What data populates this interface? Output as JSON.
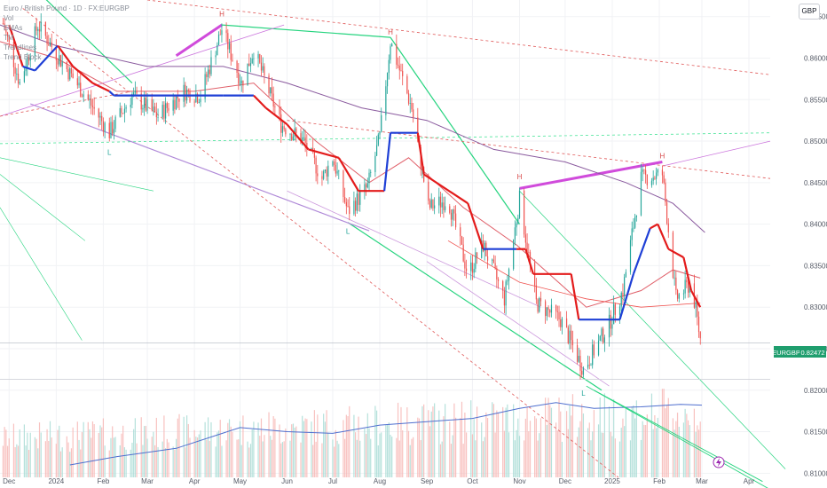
{
  "header": {
    "legend_lines": [
      "Euro / British Pound · 1D · FX:EURGBP",
      "Vol",
      "EMAs",
      "TM",
      "Trendlines",
      "Trend Block"
    ],
    "currency_button": "GBP"
  },
  "price_tag": {
    "symbol": "EURGBP",
    "value": "0.82472"
  },
  "pivot_labels": [
    {
      "text": "H",
      "date": "2024-04-19",
      "price": 0.8646
    },
    {
      "text": "H",
      "date": "2024-08-08",
      "price": 0.8624
    },
    {
      "text": "H",
      "date": "2024-11-01",
      "price": 0.845
    },
    {
      "text": "H",
      "date": "2025-02-03",
      "price": 0.8475
    },
    {
      "text": "L",
      "date": "2024-02-05",
      "price": 0.8495
    },
    {
      "text": "L",
      "date": "2024-07-11",
      "price": 0.84
    },
    {
      "text": "L",
      "date": "2024-12-13",
      "price": 0.8205
    }
  ],
  "chart_data": {
    "type": "candlestick",
    "title": "",
    "xlabel": "",
    "ylabel": "",
    "x_range": [
      "2023-11-25",
      "2025-04-15"
    ],
    "ylim": [
      0.8095,
      0.867
    ],
    "y_ticks": [
      "0.86500",
      "0.86000",
      "0.85500",
      "0.85000",
      "0.84500",
      "0.84000",
      "0.83500",
      "0.83000",
      "0.82500",
      "0.82000",
      "0.81500",
      "0.81000"
    ],
    "x_ticks": [
      {
        "label": "Dec",
        "date": "2023-12-01"
      },
      {
        "label": "2024",
        "date": "2024-01-01"
      },
      {
        "label": "Feb",
        "date": "2024-02-01"
      },
      {
        "label": "Mar",
        "date": "2024-03-01"
      },
      {
        "label": "Apr",
        "date": "2024-04-01"
      },
      {
        "label": "May",
        "date": "2024-05-01"
      },
      {
        "label": "Jun",
        "date": "2024-06-01"
      },
      {
        "label": "Jul",
        "date": "2024-07-01"
      },
      {
        "label": "Aug",
        "date": "2024-08-01"
      },
      {
        "label": "Sep",
        "date": "2024-09-01"
      },
      {
        "label": "Oct",
        "date": "2024-10-01"
      },
      {
        "label": "Nov",
        "date": "2024-11-01"
      },
      {
        "label": "Dec",
        "date": "2024-12-01"
      },
      {
        "label": "2025",
        "date": "2025-01-01"
      },
      {
        "label": "Feb",
        "date": "2025-02-01"
      },
      {
        "label": "Mar",
        "date": "2025-03-01"
      },
      {
        "label": "Apr",
        "date": "2025-04-01"
      }
    ],
    "price_path": [
      [
        "2023-11-25",
        0.8655
      ],
      [
        "2023-12-08",
        0.857
      ],
      [
        "2023-12-20",
        0.864
      ],
      [
        "2024-01-03",
        0.86
      ],
      [
        "2024-01-20",
        0.8555
      ],
      [
        "2024-02-05",
        0.851
      ],
      [
        "2024-02-20",
        0.8555
      ],
      [
        "2024-03-08",
        0.853
      ],
      [
        "2024-03-25",
        0.856
      ],
      [
        "2024-04-05",
        0.8555
      ],
      [
        "2024-04-19",
        0.8635
      ],
      [
        "2024-05-02",
        0.857
      ],
      [
        "2024-05-10",
        0.861
      ],
      [
        "2024-05-28",
        0.852
      ],
      [
        "2024-06-12",
        0.85
      ],
      [
        "2024-06-24",
        0.8455
      ],
      [
        "2024-07-01",
        0.848
      ],
      [
        "2024-07-11",
        0.8415
      ],
      [
        "2024-07-24",
        0.8445
      ],
      [
        "2024-08-01",
        0.8505
      ],
      [
        "2024-08-08",
        0.862
      ],
      [
        "2024-08-22",
        0.854
      ],
      [
        "2024-09-02",
        0.842
      ],
      [
        "2024-09-15",
        0.843
      ],
      [
        "2024-09-28",
        0.834
      ],
      [
        "2024-10-08",
        0.8375
      ],
      [
        "2024-10-22",
        0.831
      ],
      [
        "2024-11-01",
        0.843
      ],
      [
        "2024-11-12",
        0.8305
      ],
      [
        "2024-11-28",
        0.8285
      ],
      [
        "2024-12-13",
        0.8225
      ],
      [
        "2024-12-30",
        0.828
      ],
      [
        "2025-01-08",
        0.832
      ],
      [
        "2025-01-20",
        0.8455
      ],
      [
        "2025-02-03",
        0.846
      ],
      [
        "2025-02-12",
        0.831
      ],
      [
        "2025-02-22",
        0.833
      ],
      [
        "2025-03-01",
        0.825
      ]
    ],
    "trend_block": [
      [
        "2023-12-01",
        0.864,
        "red"
      ],
      [
        "2023-12-10",
        0.859,
        "red"
      ],
      [
        "2023-12-18",
        0.8585,
        "blue"
      ],
      [
        "2024-01-02",
        0.8615,
        "blue"
      ],
      [
        "2024-01-12",
        0.859,
        "red"
      ],
      [
        "2024-01-25",
        0.857,
        "red"
      ],
      [
        "2024-02-05",
        0.856,
        "red"
      ],
      [
        "2024-02-08",
        0.8555,
        "blue"
      ],
      [
        "2024-04-20",
        0.8555,
        "blue"
      ],
      [
        "2024-05-10",
        0.8555,
        "blue"
      ],
      [
        "2024-05-18",
        0.854,
        "red"
      ],
      [
        "2024-06-01",
        0.852,
        "red"
      ],
      [
        "2024-06-15",
        0.849,
        "red"
      ],
      [
        "2024-07-05",
        0.848,
        "red"
      ],
      [
        "2024-07-18",
        0.844,
        "red"
      ],
      [
        "2024-08-04",
        0.844,
        "red"
      ],
      [
        "2024-08-08",
        0.851,
        "blue"
      ],
      [
        "2024-08-26",
        0.851,
        "blue"
      ],
      [
        "2024-08-30",
        0.846,
        "red"
      ],
      [
        "2024-09-28",
        0.8425,
        "red"
      ],
      [
        "2024-10-08",
        0.837,
        "red"
      ],
      [
        "2024-10-30",
        0.837,
        "blue"
      ],
      [
        "2024-11-05",
        0.837,
        "red"
      ],
      [
        "2024-11-10",
        0.834,
        "red"
      ],
      [
        "2024-12-05",
        0.834,
        "red"
      ],
      [
        "2024-12-10",
        0.8285,
        "red"
      ],
      [
        "2025-01-06",
        0.8285,
        "blue"
      ],
      [
        "2025-01-15",
        0.834,
        "blue"
      ],
      [
        "2025-01-26",
        0.8395,
        "blue"
      ],
      [
        "2025-01-31",
        0.84,
        "red"
      ],
      [
        "2025-02-07",
        0.837,
        "red"
      ],
      [
        "2025-02-17",
        0.836,
        "red"
      ],
      [
        "2025-02-22",
        0.832,
        "red"
      ],
      [
        "2025-02-28",
        0.83,
        "red"
      ]
    ],
    "ema_fast": [
      [
        "2023-11-25",
        0.862
      ],
      [
        "2024-01-01",
        0.86
      ],
      [
        "2024-02-10",
        0.856
      ],
      [
        "2024-04-01",
        0.856
      ],
      [
        "2024-05-10",
        0.857
      ],
      [
        "2024-06-20",
        0.85
      ],
      [
        "2024-07-25",
        0.845
      ],
      [
        "2024-08-20",
        0.848
      ],
      [
        "2024-09-25",
        0.842
      ],
      [
        "2024-10-30",
        0.8375
      ],
      [
        "2024-12-15",
        0.83
      ],
      [
        "2025-01-20",
        0.832
      ],
      [
        "2025-02-10",
        0.8345
      ],
      [
        "2025-02-28",
        0.8335
      ]
    ],
    "ema_slow": [
      [
        "2023-11-25",
        0.864
      ],
      [
        "2024-01-01",
        0.8615
      ],
      [
        "2024-03-01",
        0.859
      ],
      [
        "2024-04-20",
        0.859
      ],
      [
        "2024-06-01",
        0.857
      ],
      [
        "2024-07-20",
        0.854
      ],
      [
        "2024-09-01",
        0.8525
      ],
      [
        "2024-10-15",
        0.849
      ],
      [
        "2024-12-01",
        0.8475
      ],
      [
        "2025-01-10",
        0.845
      ],
      [
        "2025-02-10",
        0.8425
      ],
      [
        "2025-03-03",
        0.839
      ]
    ],
    "ema_mid": [
      [
        "2024-09-15",
        0.838
      ],
      [
        "2024-11-01",
        0.833
      ],
      [
        "2024-12-15",
        0.831
      ],
      [
        "2025-01-20",
        0.83
      ],
      [
        "2025-02-28",
        0.8305
      ]
    ],
    "trendlines": [
      {
        "color": "#26d47f",
        "width": 1.2,
        "points": [
          [
            "2023-12-20",
            0.868
          ],
          [
            "2024-02-20",
            0.857
          ]
        ]
      },
      {
        "color": "#26d47f",
        "width": 1.2,
        "points": [
          [
            "2024-04-19",
            0.864
          ],
          [
            "2024-08-08",
            0.8625
          ]
        ]
      },
      {
        "color": "#26d47f",
        "width": 1.2,
        "points": [
          [
            "2024-08-08",
            0.8625
          ],
          [
            "2024-11-01",
            0.84
          ]
        ]
      },
      {
        "color": "#26d47f",
        "width": 1.2,
        "points": [
          [
            "2024-07-11",
            0.8402
          ],
          [
            "2024-12-25",
            0.82
          ]
        ]
      },
      {
        "color": "#26d47f",
        "width": 0.9,
        "points": [
          [
            "2024-12-15",
            0.8205
          ],
          [
            "2025-04-25",
            0.807
          ]
        ]
      },
      {
        "color": "#26d47f",
        "width": 0.9,
        "points": [
          [
            "2024-12-20",
            0.82
          ],
          [
            "2025-04-10",
            0.809
          ]
        ]
      },
      {
        "color": "#26d47f",
        "width": 0.7,
        "points": [
          [
            "2024-11-01",
            0.844
          ],
          [
            "2025-04-25",
            0.8105
          ]
        ]
      },
      {
        "color": "#2ee089",
        "width": 0.7,
        "dash": "3,3",
        "points": [
          [
            "2023-11-25",
            0.8497
          ],
          [
            "2025-04-15",
            0.851
          ]
        ]
      },
      {
        "color": "#26d47f",
        "width": 0.6,
        "points": [
          [
            "2023-11-25",
            0.848
          ],
          [
            "2024-03-05",
            0.844
          ]
        ]
      },
      {
        "color": "#26d47f",
        "width": 0.6,
        "points": [
          [
            "2023-11-25",
            0.846
          ],
          [
            "2024-01-20",
            0.838
          ]
        ]
      },
      {
        "color": "#26d47f",
        "width": 0.6,
        "points": [
          [
            "2023-11-25",
            0.842
          ],
          [
            "2024-01-18",
            0.826
          ]
        ]
      },
      {
        "color": "#b08ad8",
        "width": 1.2,
        "points": [
          [
            "2023-12-15",
            0.8545
          ],
          [
            "2024-07-25",
            0.8392
          ]
        ]
      },
      {
        "color": "#cc99dd",
        "width": 0.8,
        "points": [
          [
            "2024-06-01",
            0.844
          ],
          [
            "2024-11-15",
            0.83
          ]
        ]
      },
      {
        "color": "#cc99dd",
        "width": 0.8,
        "points": [
          [
            "2024-09-01",
            0.8355
          ],
          [
            "2024-12-30",
            0.8205
          ]
        ]
      },
      {
        "color": "#cc77dd",
        "width": 0.8,
        "points": [
          [
            "2023-11-25",
            0.853
          ],
          [
            "2024-05-30",
            0.864
          ]
        ]
      },
      {
        "color": "#cc77dd",
        "width": 0.8,
        "points": [
          [
            "2025-02-03",
            0.847
          ],
          [
            "2025-04-15",
            0.85
          ]
        ]
      },
      {
        "color": "#e05858",
        "width": 0.8,
        "dash": "3,3",
        "points": [
          [
            "2024-03-01",
            0.867
          ],
          [
            "2025-04-15",
            0.858
          ]
        ]
      },
      {
        "color": "#e05858",
        "width": 0.8,
        "dash": "3,3",
        "points": [
          [
            "2024-06-01",
            0.8525
          ],
          [
            "2025-04-15",
            0.8455
          ]
        ]
      },
      {
        "color": "#e05858",
        "width": 0.8,
        "dash": "3,3",
        "points": [
          [
            "2023-12-10",
            0.866
          ],
          [
            "2025-01-05",
            0.8095
          ]
        ]
      },
      {
        "color": "#e05858",
        "width": 0.8,
        "dash": "3,3",
        "points": [
          [
            "2023-11-25",
            0.853
          ],
          [
            "2024-02-20",
            0.856
          ]
        ]
      },
      {
        "color": "#c9ccd3",
        "width": 0.8,
        "points": [
          [
            "2023-11-25",
            0.8213
          ],
          [
            "2025-04-15",
            0.8213
          ]
        ]
      },
      {
        "color": "#9fa6b2",
        "width": 0.5,
        "points": [
          [
            "2023-11-25",
            0.8257
          ],
          [
            "2025-04-15",
            0.8257
          ]
        ]
      }
    ],
    "channel_highlights": [
      {
        "color": "#d04bdb",
        "width": 3,
        "points": [
          [
            "2024-03-20",
            0.8603
          ],
          [
            "2024-04-19",
            0.864
          ]
        ]
      },
      {
        "color": "#d04bdb",
        "width": 3,
        "points": [
          [
            "2024-11-01",
            0.8443
          ],
          [
            "2025-02-03",
            0.8475
          ]
        ]
      }
    ],
    "volume_ma": [
      [
        "2024-01-10",
        0.811
      ],
      [
        "2024-02-10",
        0.812
      ],
      [
        "2024-03-20",
        0.813
      ],
      [
        "2024-05-01",
        0.8155
      ],
      [
        "2024-06-01",
        0.815
      ],
      [
        "2024-07-01",
        0.8148
      ],
      [
        "2024-08-01",
        0.8158
      ],
      [
        "2024-09-01",
        0.8162
      ],
      [
        "2024-10-01",
        0.8166
      ],
      [
        "2024-11-01",
        0.8178
      ],
      [
        "2024-11-25",
        0.8185
      ],
      [
        "2024-12-20",
        0.8178
      ],
      [
        "2025-01-20",
        0.818
      ],
      [
        "2025-02-15",
        0.8183
      ],
      [
        "2025-03-01",
        0.8182
      ]
    ],
    "grid": true,
    "legend": "top-left",
    "colors": {
      "bull": "#26a69a",
      "bear": "#ef5350",
      "trend_up": "#1e3fd6",
      "trend_down": "#e31b1b",
      "ema_fast": "#e0606a",
      "ema_slow": "#8a5a9e",
      "ema_mid": "#ef5350",
      "vol_ma": "#4f6fcf"
    }
  }
}
